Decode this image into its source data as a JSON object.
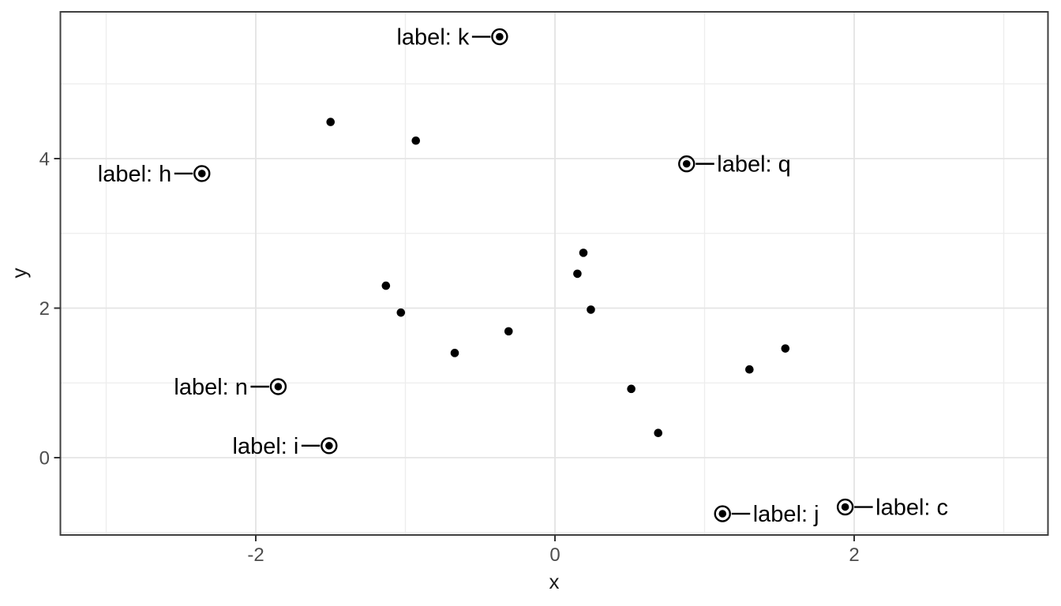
{
  "chart_data": {
    "type": "scatter",
    "title": "",
    "xlabel": "x",
    "ylabel": "y",
    "legend": "none",
    "grid": true,
    "xlim": [
      -3.3,
      3.3
    ],
    "ylim": [
      -1.05,
      5.95
    ],
    "x_major_ticks": [
      {
        "value": -2,
        "label": "-2"
      },
      {
        "value": 0,
        "label": "0"
      },
      {
        "value": 2,
        "label": "2"
      }
    ],
    "y_major_ticks": [
      {
        "value": 0,
        "label": "0"
      },
      {
        "value": 2,
        "label": "2"
      },
      {
        "value": 4,
        "label": "4"
      }
    ],
    "x_minor_gridlines": [
      -3,
      -1,
      1,
      3
    ],
    "y_minor_gridlines": [
      -1,
      1,
      3,
      5
    ],
    "points": [
      {
        "x": -0.37,
        "y": 5.63,
        "label": "label: k",
        "label_side": "left"
      },
      {
        "x": -2.36,
        "y": 3.8,
        "label": "label: h",
        "label_side": "left"
      },
      {
        "x": 0.88,
        "y": 3.93,
        "label": "label: q",
        "label_side": "right"
      },
      {
        "x": -1.85,
        "y": 0.95,
        "label": "label: n",
        "label_side": "left"
      },
      {
        "x": -1.51,
        "y": 0.16,
        "label": "label: i",
        "label_side": "left"
      },
      {
        "x": 1.12,
        "y": -0.75,
        "label": "label: j",
        "label_side": "right"
      },
      {
        "x": 1.94,
        "y": -0.66,
        "label": "label: c",
        "label_side": "right"
      },
      {
        "x": -1.5,
        "y": 4.49
      },
      {
        "x": -0.93,
        "y": 4.24
      },
      {
        "x": -1.13,
        "y": 2.3
      },
      {
        "x": -1.03,
        "y": 1.94
      },
      {
        "x": -0.67,
        "y": 1.4
      },
      {
        "x": -0.31,
        "y": 1.69
      },
      {
        "x": 0.19,
        "y": 2.74
      },
      {
        "x": 0.15,
        "y": 2.46
      },
      {
        "x": 0.24,
        "y": 1.98
      },
      {
        "x": 0.51,
        "y": 0.92
      },
      {
        "x": 0.69,
        "y": 0.33
      },
      {
        "x": 1.3,
        "y": 1.18
      },
      {
        "x": 1.54,
        "y": 1.46
      }
    ],
    "colors": {
      "point": "#000000",
      "label_text": "#000000",
      "connector": "#000000",
      "grid_major": "#e4e4e4",
      "grid_minor": "#ededed",
      "panel_border": "#3f3f3f",
      "tick_mark": "#333333",
      "tick_text": "#4d4d4d",
      "axis_title": "#1a1a1a",
      "background": "#ffffff"
    }
  }
}
